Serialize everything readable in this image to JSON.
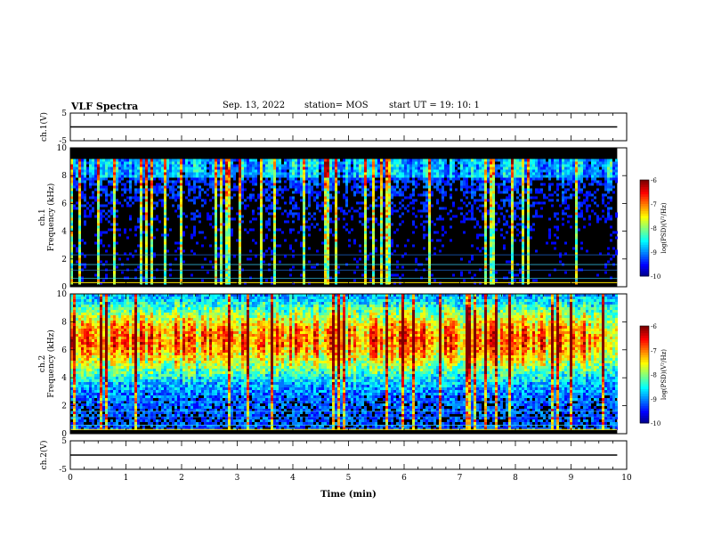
{
  "header": {
    "title": "VLF Spectra",
    "date": "Sep. 13, 2022",
    "station": "station= MOS",
    "start": "start  UT =   19: 10: 1"
  },
  "chart_data": [
    {
      "type": "line",
      "id": "ch1v",
      "ylabel": "ch.1(V)",
      "ylim": [
        -5,
        5
      ],
      "yticks": [
        "5",
        "-5"
      ],
      "series": [
        {
          "x": [
            0,
            9.83
          ],
          "y": [
            0,
            0
          ]
        }
      ]
    },
    {
      "type": "heatmap",
      "id": "ch1spec",
      "ylabel": "ch.1\nFrequency (kHz)",
      "ylim": [
        0,
        10
      ],
      "yticks": [
        "0",
        "2",
        "4",
        "6",
        "8",
        "10"
      ],
      "colorbar": {
        "label": "log(PSD)(V²/Hz)",
        "range": [
          -10,
          -6
        ],
        "ticks": [
          "-6",
          "-7",
          "-8",
          "-9",
          "-10"
        ]
      },
      "band_khz": [
        0.3,
        9.2
      ]
    },
    {
      "type": "heatmap",
      "id": "ch2spec",
      "ylabel": "ch.2\nFrequency (kHz)",
      "ylim": [
        0,
        10
      ],
      "yticks": [
        "0",
        "2",
        "4",
        "6",
        "8",
        "10"
      ],
      "colorbar": {
        "label": "log(PSD)(V²/Hz)",
        "range": [
          -10,
          -6
        ],
        "ticks": [
          "-6",
          "-7",
          "-8",
          "-9",
          "-10"
        ]
      },
      "band_khz": [
        0.3,
        10
      ]
    },
    {
      "type": "line",
      "id": "ch2v",
      "ylabel": "ch.2(V)",
      "ylim": [
        -5,
        5
      ],
      "yticks": [
        "5",
        "-5"
      ],
      "series": [
        {
          "x": [
            0,
            9.83
          ],
          "y": [
            0,
            0
          ]
        }
      ]
    }
  ],
  "xaxis": {
    "label": "Time  (min)",
    "range": [
      0,
      10
    ],
    "ticks": [
      "0",
      "1",
      "2",
      "3",
      "4",
      "5",
      "6",
      "7",
      "8",
      "9",
      "10"
    ]
  },
  "colors": {
    "background": "#000000",
    "frame": "#000000"
  }
}
